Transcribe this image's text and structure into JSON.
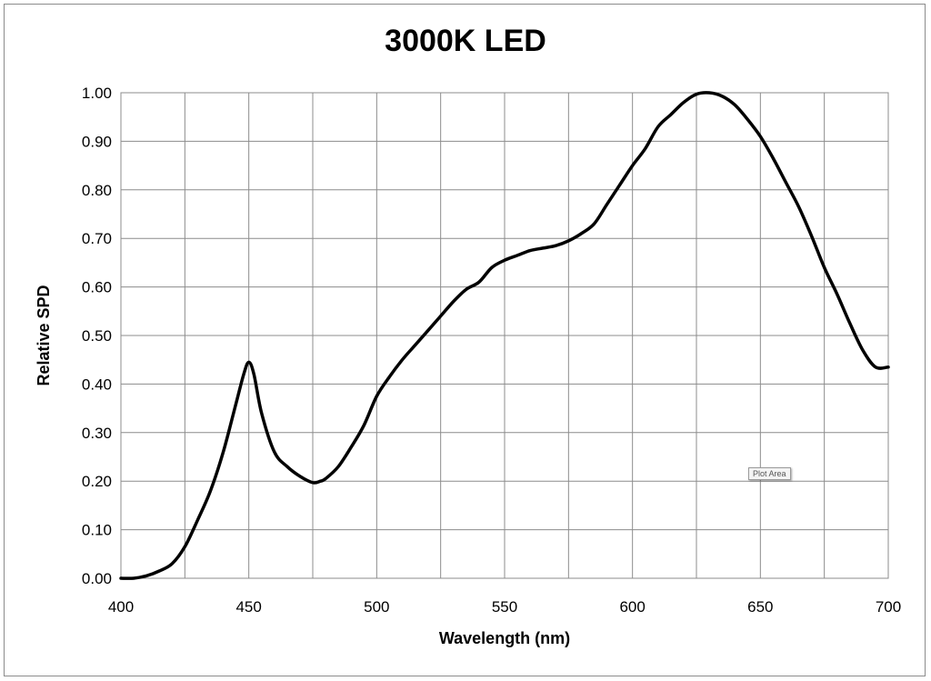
{
  "chart_data": {
    "type": "line",
    "title": "3000K LED",
    "xlabel": "Wavelength (nm)",
    "ylabel": "Relative SPD",
    "xlim": [
      400,
      700
    ],
    "ylim": [
      0,
      1
    ],
    "x_ticks": [
      "400",
      "450",
      "500",
      "550",
      "600",
      "650",
      "700"
    ],
    "y_ticks": [
      "0.00",
      "0.10",
      "0.20",
      "0.30",
      "0.40",
      "0.50",
      "0.60",
      "0.70",
      "0.80",
      "0.90",
      "1.00"
    ],
    "grid": true,
    "line_color": "#000000",
    "series": [
      {
        "x": [
          400,
          405,
          410,
          415,
          420,
          425,
          430,
          435,
          440,
          445,
          448,
          450,
          452,
          455,
          460,
          465,
          470,
          475,
          478,
          480,
          485,
          490,
          495,
          500,
          505,
          510,
          515,
          520,
          525,
          530,
          535,
          540,
          545,
          550,
          555,
          560,
          565,
          570,
          575,
          580,
          585,
          590,
          595,
          600,
          605,
          610,
          615,
          620,
          625,
          630,
          635,
          640,
          645,
          650,
          655,
          660,
          665,
          670,
          675,
          680,
          685,
          690,
          695,
          700
        ],
        "y": [
          0.0,
          0.0,
          0.005,
          0.015,
          0.03,
          0.065,
          0.12,
          0.18,
          0.26,
          0.36,
          0.42,
          0.445,
          0.42,
          0.34,
          0.26,
          0.23,
          0.21,
          0.197,
          0.2,
          0.205,
          0.23,
          0.27,
          0.315,
          0.375,
          0.415,
          0.45,
          0.48,
          0.51,
          0.54,
          0.57,
          0.595,
          0.61,
          0.64,
          0.655,
          0.665,
          0.675,
          0.68,
          0.685,
          0.695,
          0.71,
          0.73,
          0.77,
          0.81,
          0.85,
          0.885,
          0.93,
          0.955,
          0.98,
          0.997,
          1.0,
          0.993,
          0.975,
          0.945,
          0.91,
          0.865,
          0.815,
          0.765,
          0.705,
          0.64,
          0.585,
          0.525,
          0.47,
          0.435,
          0.435
        ]
      }
    ],
    "tooltip_text": "Plot Area"
  }
}
